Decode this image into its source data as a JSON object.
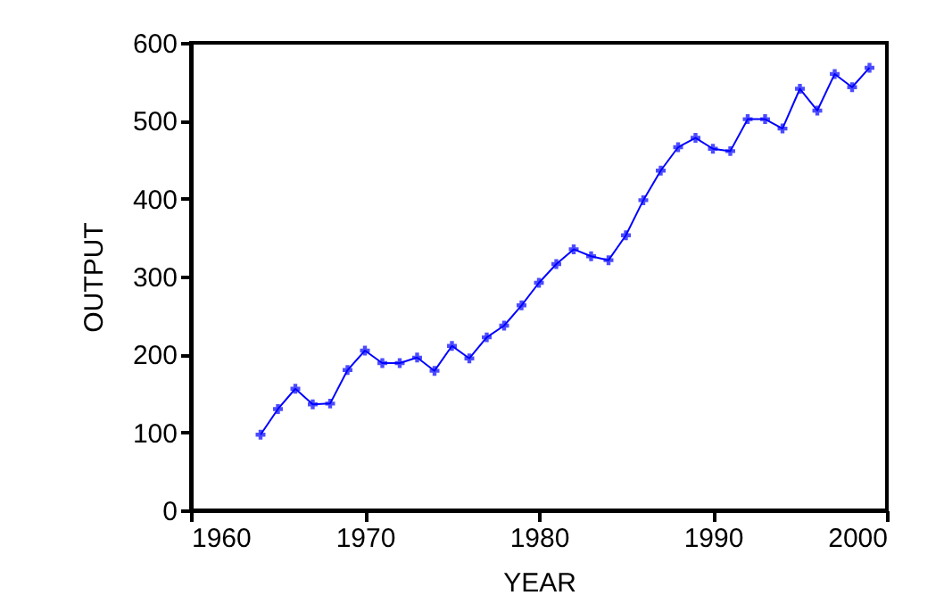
{
  "chart_data": {
    "type": "line",
    "xlabel": "YEAR",
    "ylabel": "OUTPUT",
    "x": [
      1964,
      1965,
      1966,
      1967,
      1968,
      1969,
      1970,
      1971,
      1972,
      1973,
      1974,
      1975,
      1976,
      1977,
      1978,
      1979,
      1980,
      1981,
      1982,
      1983,
      1984,
      1985,
      1986,
      1987,
      1988,
      1989,
      1990,
      1991,
      1992,
      1993,
      1994,
      1995,
      1996,
      1997,
      1998,
      1999
    ],
    "series": [
      {
        "color": "#0000ff",
        "values": [
          97,
          130,
          156,
          136,
          137,
          180,
          205,
          189,
          189,
          196,
          179,
          211,
          195,
          222,
          237,
          263,
          292,
          316,
          335,
          326,
          321,
          353,
          398,
          436,
          466,
          478,
          464,
          461,
          502,
          502,
          490,
          541,
          513,
          560,
          543,
          568
        ]
      }
    ],
    "xlim": [
      1960,
      2000
    ],
    "xticks": [
      1960,
      1970,
      1980,
      1990,
      2000
    ],
    "ylim": [
      0,
      600
    ],
    "yticks": [
      0,
      100,
      200,
      300,
      400,
      500,
      600
    ],
    "marker": "cross",
    "line_style": "solid",
    "grid": false,
    "legend": false
  }
}
